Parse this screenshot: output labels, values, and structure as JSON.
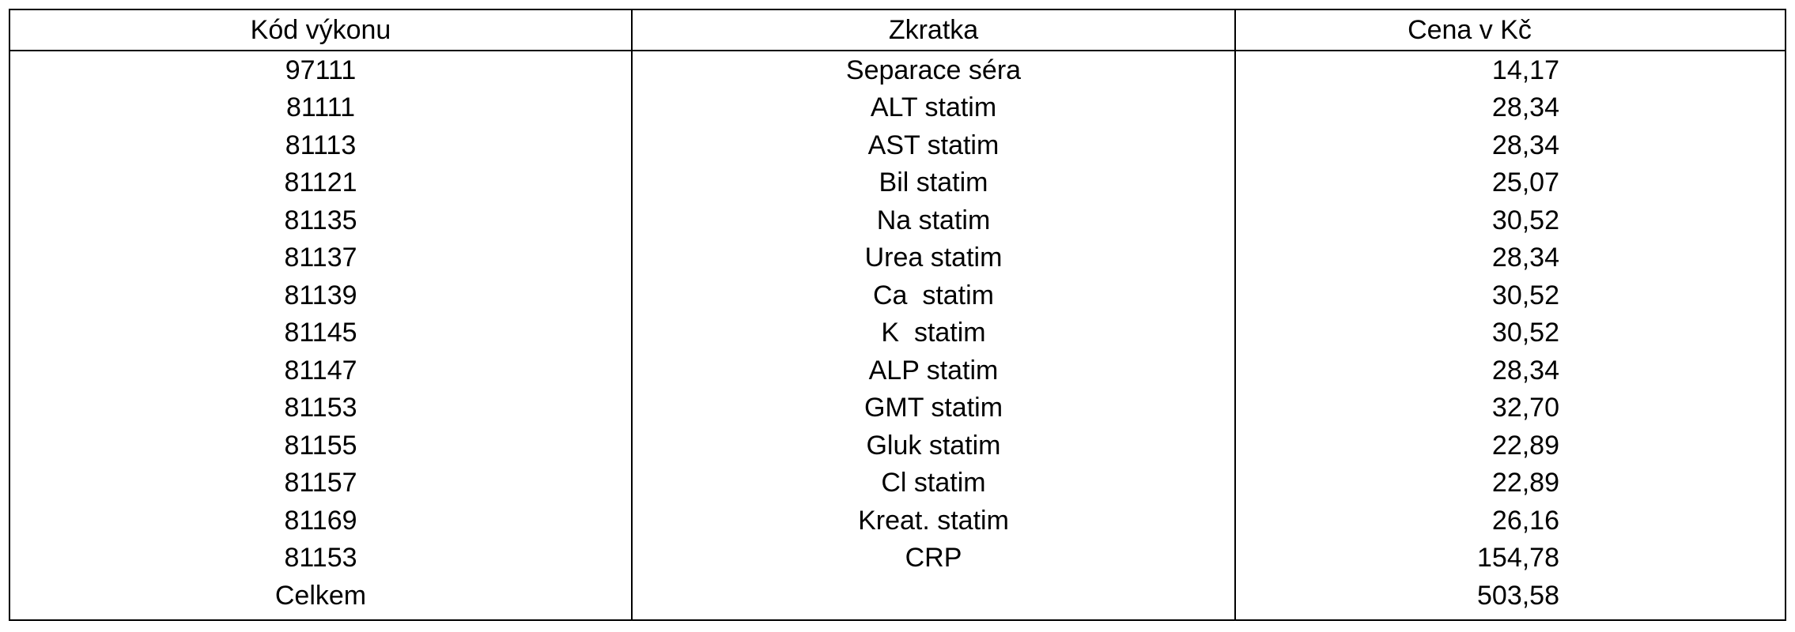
{
  "table": {
    "headers": {
      "code": "Kód výkonu",
      "abbr": "Zkratka",
      "price": "Cena v Kč"
    },
    "rows": [
      {
        "code": "97111",
        "abbr": "Separace séra",
        "price": "14,17"
      },
      {
        "code": "81111",
        "abbr": "ALT statim",
        "price": "28,34"
      },
      {
        "code": "81113",
        "abbr": "AST statim",
        "price": "28,34"
      },
      {
        "code": "81121",
        "abbr": "Bil statim",
        "price": "25,07"
      },
      {
        "code": "81135",
        "abbr": "Na statim",
        "price": "30,52"
      },
      {
        "code": "81137",
        "abbr": "Urea statim",
        "price": "28,34"
      },
      {
        "code": "81139",
        "abbr": "Ca  statim",
        "price": "30,52"
      },
      {
        "code": "81145",
        "abbr": "K  statim",
        "price": "30,52"
      },
      {
        "code": "81147",
        "abbr": "ALP statim",
        "price": "28,34"
      },
      {
        "code": "81153",
        "abbr": "GMT statim",
        "price": "32,70"
      },
      {
        "code": "81155",
        "abbr": "Gluk statim",
        "price": "22,89"
      },
      {
        "code": "81157",
        "abbr": "Cl statim",
        "price": "22,89"
      },
      {
        "code": "81169",
        "abbr": "Kreat. statim",
        "price": "26,16"
      },
      {
        "code": "81153",
        "abbr": "CRP",
        "price": "154,78"
      },
      {
        "code": "Celkem",
        "abbr": "",
        "price": "503,58"
      }
    ]
  }
}
